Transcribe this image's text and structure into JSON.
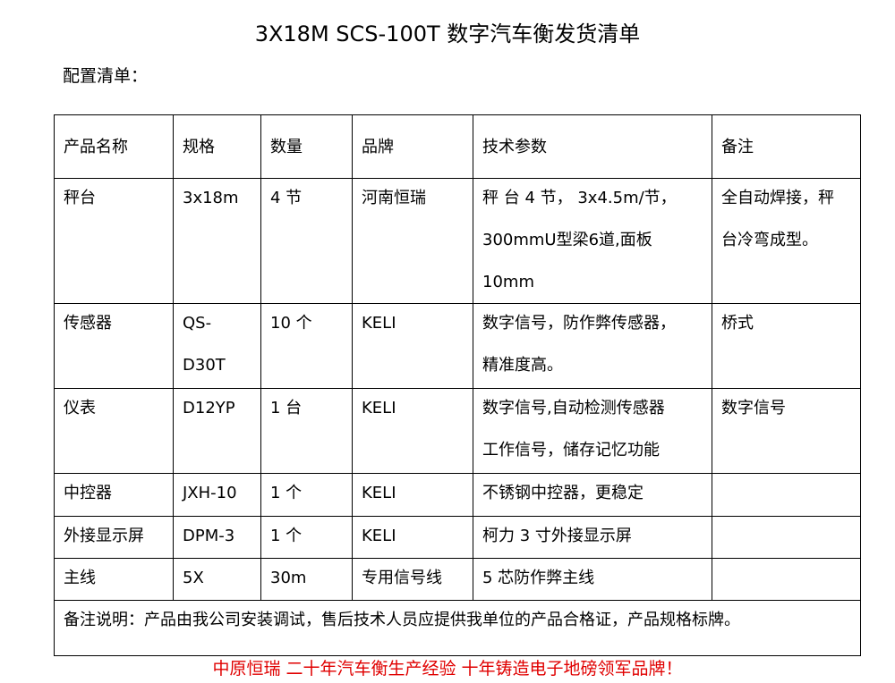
{
  "title": "3X18M SCS-100T 数字汽车衡发货清单",
  "subtitle": "配置清单：",
  "table": {
    "headers": [
      "产品名称",
      "规格",
      "数量",
      "品牌",
      "技术参数",
      "备注"
    ],
    "rows": [
      {
        "name": "秤台",
        "spec": "3x18m",
        "qty": "4 节",
        "brand": "河南恒瑞",
        "tech": [
          "秤 台 4 节， 3x4.5m/节，",
          "300mmU型梁6道,面板10mm"
        ],
        "note": [
          "全自动焊接，秤",
          "台冷弯成型。"
        ]
      },
      {
        "name": "传感器",
        "spec": "QS-D30T",
        "qty": "10 个",
        "brand": "KELI",
        "tech": [
          "数字信号，防作弊传感器，",
          "精准度高。"
        ],
        "note": [
          "桥式"
        ]
      },
      {
        "name": "仪表",
        "spec": "D12YP",
        "qty": "1 台",
        "brand": "KELI",
        "tech": [
          "数字信号,自动检测传感器",
          "工作信号，储存记忆功能"
        ],
        "note": [
          "数字信号"
        ]
      },
      {
        "name": "中控器",
        "spec": "JXH-10",
        "qty": "1 个",
        "brand": "KELI",
        "tech": [
          "不锈钢中控器，更稳定"
        ],
        "note": []
      },
      {
        "name": "外接显示屏",
        "spec": "DPM-3",
        "qty": "1 个",
        "brand": "KELI",
        "tech": [
          "柯力 3 寸外接显示屏"
        ],
        "note": []
      },
      {
        "name": "主线",
        "spec": "5X",
        "qty": "30m",
        "brand": "专用信号线",
        "tech": [
          "5 芯防作弊主线"
        ],
        "note": []
      }
    ],
    "remark": "备注说明：产品由我公司安装调试，售后技术人员应提供我单位的产品合格证，产品规格标牌。"
  },
  "footer": "中原恒瑞  二十年汽车衡生产经验  十年铸造电子地磅领军品牌！",
  "colors": {
    "footer": "#e00000"
  }
}
